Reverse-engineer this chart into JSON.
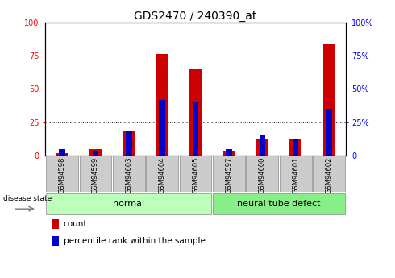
{
  "title": "GDS2470 / 240390_at",
  "samples": [
    "GSM94598",
    "GSM94599",
    "GSM94603",
    "GSM94604",
    "GSM94605",
    "GSM94597",
    "GSM94600",
    "GSM94601",
    "GSM94602"
  ],
  "red_values": [
    2,
    5,
    18,
    76,
    65,
    3,
    12,
    12,
    84
  ],
  "blue_values": [
    5,
    3,
    18,
    42,
    40,
    5,
    15,
    13,
    35
  ],
  "groups": [
    {
      "label": "normal",
      "start": 0,
      "end": 4,
      "color": "#bbffbb"
    },
    {
      "label": "neural tube defect",
      "start": 5,
      "end": 8,
      "color": "#88ee88"
    }
  ],
  "red_color": "#cc0000",
  "blue_color": "#0000cc",
  "ylim": [
    0,
    100
  ],
  "yticks": [
    0,
    25,
    50,
    75,
    100
  ],
  "disease_state_label": "disease state",
  "legend_red": "count",
  "legend_blue": "percentile rank within the sample",
  "title_fontsize": 10,
  "tick_fontsize": 7,
  "group_label_fontsize": 8,
  "sample_label_fontsize": 6
}
